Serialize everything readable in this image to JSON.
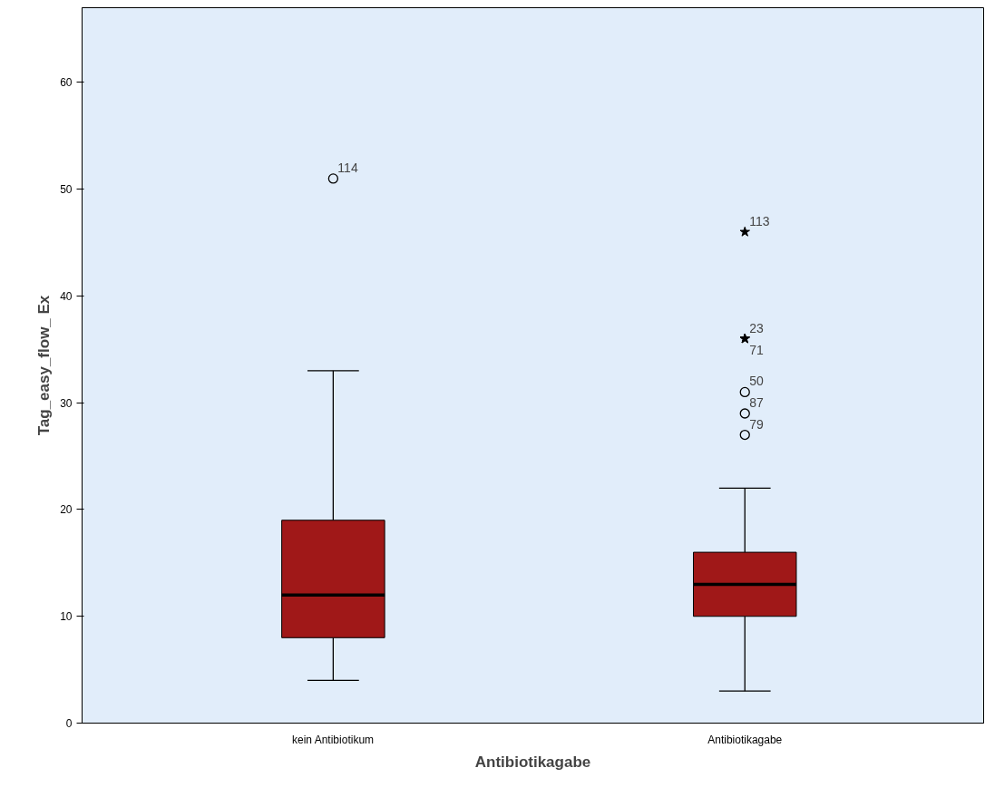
{
  "chart_data": {
    "type": "box",
    "xlabel": "Antibiotikagabe",
    "ylabel": "Tag_easy_flow_ Ex",
    "categories": [
      "kein Antibiotikum",
      "Antibiotikagabe"
    ],
    "series": [
      {
        "color": "#a01818",
        "boxes": [
          {
            "low": 4,
            "q1": 8,
            "median": 12,
            "q3": 19,
            "high": 33,
            "outliers": [
              51
            ]
          },
          {
            "low": 3,
            "q1": 10,
            "median": 13,
            "q3": 16,
            "high": 22,
            "outliers": [
              46,
              36,
              36,
              31,
              29,
              27
            ]
          }
        ]
      }
    ],
    "ylim": [
      0,
      67
    ],
    "yticks": [
      0,
      10,
      20,
      30,
      40,
      50,
      60
    ],
    "grid": false,
    "annotations": [
      "114",
      "113",
      "23",
      "71",
      "50",
      "87",
      "79"
    ]
  }
}
